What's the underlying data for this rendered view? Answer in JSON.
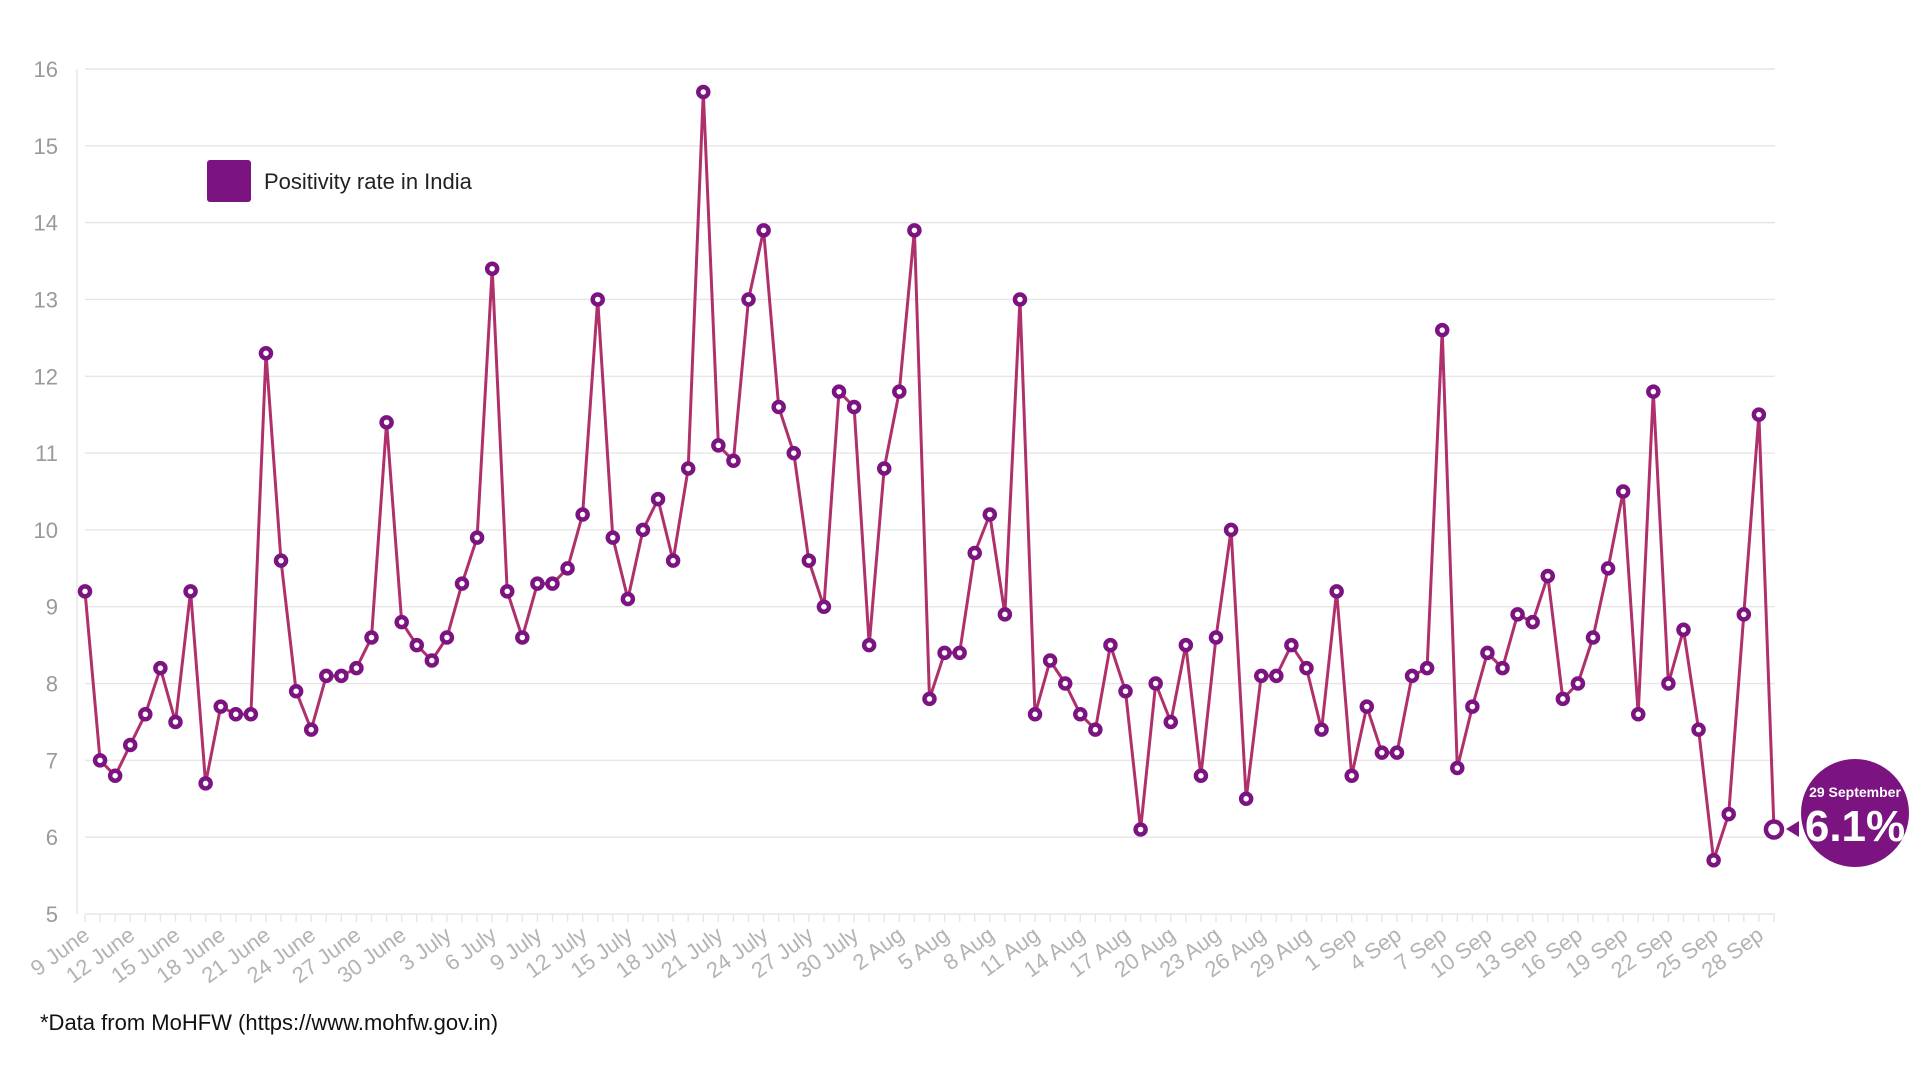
{
  "chart_data": {
    "type": "line",
    "title": "",
    "xlabel": "",
    "ylabel": "",
    "ylim": [
      5,
      16
    ],
    "yticks": [
      "5",
      "6",
      "7",
      "8",
      "9",
      "10",
      "11",
      "12",
      "13",
      "14",
      "15",
      "16"
    ],
    "grid": true,
    "legend_position": "top-left",
    "x_tick_labels": [
      "9 June",
      "12 June",
      "15 June",
      "18 June",
      "21 June",
      "24 June",
      "27 June",
      "30 June",
      "3 July",
      "6 July",
      "9 July",
      "12 July",
      "15 July",
      "18 July",
      "21 July",
      "24 July",
      "27 July",
      "30 July",
      "2 Aug",
      "5 Aug",
      "8 Aug",
      "11 Aug",
      "14 Aug",
      "17 Aug",
      "20 Aug",
      "23 Aug",
      "26 Aug",
      "29 Aug",
      "1 Sep",
      "4 Sep",
      "7 Sep",
      "10 Sep",
      "13 Sep",
      "16 Sep",
      "19 Sep",
      "22 Sep",
      "25 Sep",
      "28 Sep"
    ],
    "series": [
      {
        "name": "Positivity rate in India",
        "color": "#7b1480",
        "line_color": "#b0306c",
        "values": [
          9.2,
          7.0,
          6.8,
          7.2,
          7.6,
          8.2,
          7.5,
          9.2,
          6.7,
          7.7,
          7.6,
          7.6,
          12.3,
          9.6,
          7.9,
          7.4,
          8.1,
          8.1,
          8.2,
          8.6,
          11.4,
          8.8,
          8.5,
          8.3,
          8.6,
          9.3,
          9.9,
          13.4,
          9.2,
          8.6,
          9.3,
          9.3,
          9.5,
          10.2,
          13.0,
          9.9,
          9.1,
          10.0,
          10.4,
          9.6,
          10.8,
          15.7,
          11.1,
          10.9,
          13.0,
          13.9,
          11.6,
          11.0,
          9.6,
          9.0,
          11.8,
          11.6,
          8.5,
          10.8,
          11.8,
          13.9,
          7.8,
          8.4,
          8.4,
          9.7,
          10.2,
          8.9,
          13.0,
          7.6,
          8.3,
          8.0,
          7.6,
          7.4,
          8.5,
          7.9,
          6.1,
          8.0,
          7.5,
          8.5,
          6.8,
          8.6,
          10.0,
          6.5,
          8.1,
          8.1,
          8.5,
          8.2,
          7.4,
          9.2,
          6.8,
          7.7,
          7.1,
          7.1,
          8.1,
          8.2,
          12.6,
          6.9,
          7.7,
          8.4,
          8.2,
          8.9,
          8.8,
          9.4,
          7.8,
          8.0,
          8.6,
          9.5,
          10.5,
          7.6,
          11.8,
          8.0,
          8.7,
          7.4,
          5.7,
          6.3,
          8.9,
          11.5,
          6.1
        ]
      }
    ],
    "annotation": {
      "date": "29 September",
      "value": "6.1%"
    }
  },
  "footnote": "*Data from MoHFW (https://www.mohfw.gov.in)"
}
